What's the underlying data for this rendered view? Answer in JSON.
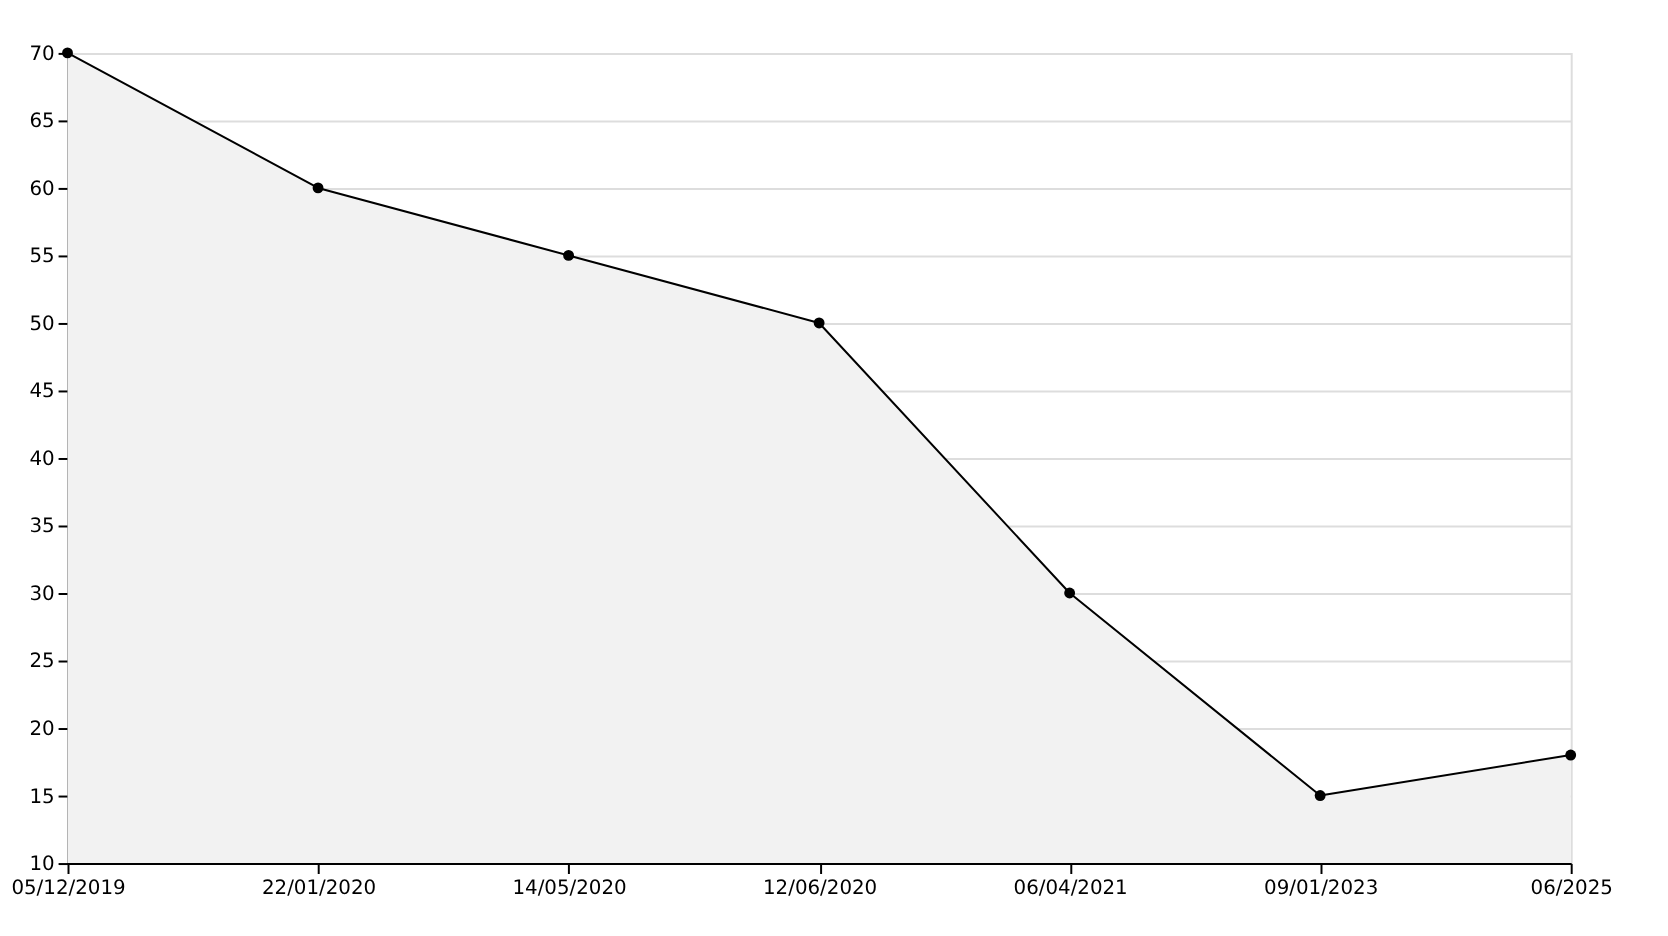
{
  "chart_data": {
    "type": "area",
    "categories": [
      "05/12/2019",
      "22/01/2020",
      "14/05/2020",
      "12/06/2020",
      "06/04/2021",
      "09/01/2023",
      "06/2025"
    ],
    "series": [
      {
        "color": "#000000",
        "values": [
          70,
          60,
          55,
          50,
          30,
          15,
          18
        ]
      }
    ],
    "ylim": [
      10,
      70
    ],
    "yticks": [
      10,
      15,
      20,
      25,
      30,
      35,
      40,
      45,
      50,
      55,
      60,
      65,
      70
    ],
    "grid": "y",
    "marker": "circle",
    "line_style": "solid"
  }
}
